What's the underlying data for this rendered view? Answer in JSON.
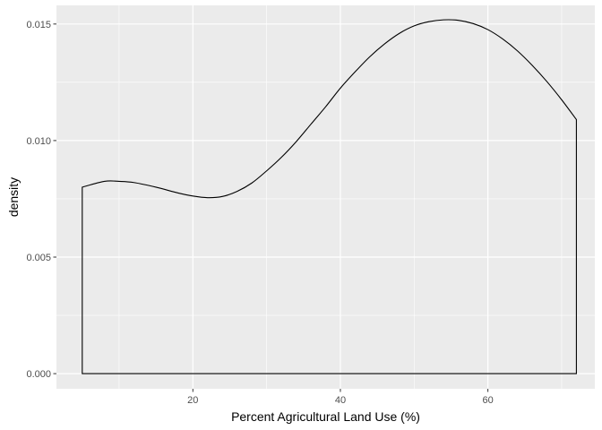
{
  "chart_data": {
    "type": "area",
    "title": "",
    "xlabel": "Percent Agricultural Land Use (%)",
    "ylabel": "density",
    "xlim": [
      1.5,
      74.5
    ],
    "ylim": [
      -0.00065,
      0.0158
    ],
    "x_ticks": [
      20,
      40,
      60
    ],
    "x_tick_labels": [
      "20",
      "40",
      "60"
    ],
    "y_ticks": [
      0.0,
      0.005,
      0.01,
      0.015
    ],
    "y_tick_labels": [
      "0.000",
      "0.005",
      "0.010",
      "0.015"
    ],
    "grid": true,
    "legend": "none",
    "series": [
      {
        "x": [
          5.0,
          8.0,
          10.0,
          12.0,
          15.0,
          18.0,
          20.0,
          22.0,
          24.0,
          26.0,
          28.0,
          30.0,
          32.0,
          34.0,
          36.0,
          38.0,
          40.0,
          42.0,
          44.0,
          46.0,
          48.0,
          50.0,
          52.0,
          54.0,
          56.0,
          58.0,
          60.0,
          62.0,
          64.0,
          66.0,
          68.0,
          70.0,
          72.0
        ],
        "y": [
          0.008,
          0.00825,
          0.00825,
          0.0082,
          0.008,
          0.00775,
          0.00762,
          0.00755,
          0.0076,
          0.00782,
          0.00818,
          0.0087,
          0.00928,
          0.00995,
          0.0107,
          0.01145,
          0.01225,
          0.01295,
          0.0136,
          0.01415,
          0.0146,
          0.01492,
          0.0151,
          0.01518,
          0.01516,
          0.01502,
          0.01476,
          0.01436,
          0.01385,
          0.01323,
          0.01253,
          0.01175,
          0.0109
        ]
      }
    ],
    "colors": {
      "panel": "#ebebeb",
      "grid": "#ffffff",
      "line": "#000000",
      "tick_text": "#4d4d4d"
    }
  }
}
